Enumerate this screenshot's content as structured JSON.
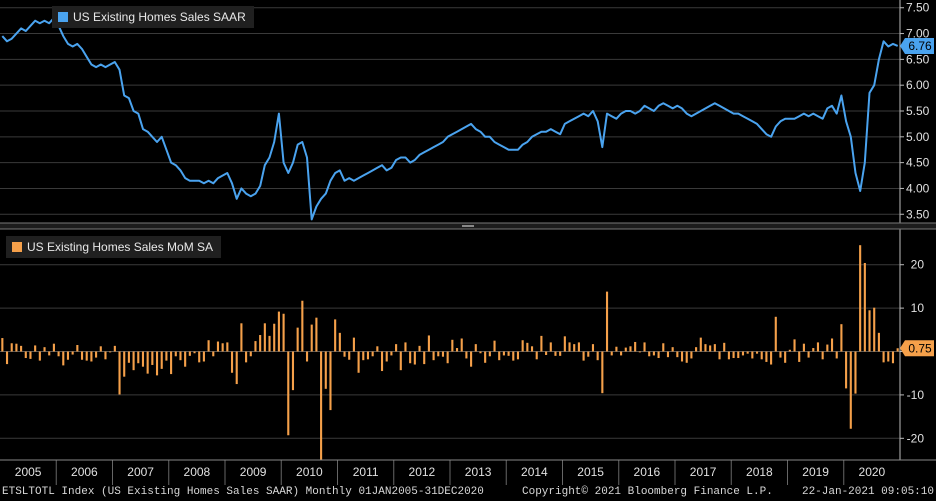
{
  "chart_data": [
    {
      "type": "line",
      "legend": "US Existing Homes Sales SAAR",
      "color": "#4aa3ef",
      "last_value_label": "6.76",
      "ylim": [
        3.35,
        7.65
      ],
      "yticks": [
        "3.50",
        "4.00",
        "4.50",
        "5.00",
        "5.50",
        "6.00",
        "6.50",
        "7.00",
        "7.50"
      ],
      "x_start": "2005-01",
      "x_end": "2020-12",
      "series": [
        {
          "frequency": "monthly",
          "values": [
            6.95,
            6.85,
            6.9,
            7.0,
            7.1,
            7.05,
            7.15,
            7.25,
            7.2,
            7.25,
            7.2,
            7.3,
            7.15,
            6.95,
            6.8,
            6.75,
            6.8,
            6.7,
            6.55,
            6.4,
            6.35,
            6.4,
            6.35,
            6.4,
            6.45,
            6.3,
            5.8,
            5.75,
            5.5,
            5.45,
            5.15,
            5.1,
            5.0,
            4.9,
            5.0,
            4.75,
            4.5,
            4.45,
            4.35,
            4.2,
            4.15,
            4.15,
            4.15,
            4.1,
            4.15,
            4.1,
            4.2,
            4.25,
            4.3,
            4.1,
            3.8,
            4.0,
            3.9,
            3.85,
            3.9,
            4.05,
            4.45,
            4.6,
            4.9,
            5.45,
            4.5,
            4.3,
            4.5,
            4.85,
            4.9,
            4.6,
            3.4,
            3.65,
            3.8,
            3.9,
            4.15,
            4.3,
            4.35,
            4.15,
            4.2,
            4.15,
            4.2,
            4.25,
            4.3,
            4.35,
            4.4,
            4.45,
            4.35,
            4.4,
            4.55,
            4.6,
            4.6,
            4.5,
            4.55,
            4.65,
            4.7,
            4.75,
            4.8,
            4.85,
            4.9,
            5.0,
            5.05,
            5.1,
            5.15,
            5.2,
            5.25,
            5.15,
            5.1,
            5.0,
            5.0,
            4.9,
            4.85,
            4.8,
            4.75,
            4.75,
            4.75,
            4.85,
            4.9,
            5.0,
            5.05,
            5.1,
            5.1,
            5.15,
            5.1,
            5.05,
            5.25,
            5.3,
            5.35,
            5.4,
            5.45,
            5.4,
            5.5,
            5.3,
            4.8,
            5.45,
            5.4,
            5.35,
            5.45,
            5.5,
            5.5,
            5.45,
            5.5,
            5.6,
            5.55,
            5.5,
            5.6,
            5.65,
            5.6,
            5.55,
            5.6,
            5.55,
            5.45,
            5.4,
            5.45,
            5.5,
            5.55,
            5.6,
            5.65,
            5.6,
            5.55,
            5.5,
            5.45,
            5.45,
            5.4,
            5.35,
            5.3,
            5.25,
            5.15,
            5.05,
            5.0,
            5.2,
            5.3,
            5.35,
            5.35,
            5.35,
            5.4,
            5.45,
            5.4,
            5.45,
            5.4,
            5.35,
            5.55,
            5.6,
            5.45,
            5.8,
            5.3,
            5.0,
            4.3,
            3.95,
            4.5,
            5.85,
            6.0,
            6.5,
            6.85,
            6.75,
            6.8,
            6.76
          ]
        }
      ]
    },
    {
      "type": "bar",
      "legend": "US Existing Homes Sales MoM SA",
      "color": "#f5a04a",
      "last_value_label": "0.75",
      "ylim": [
        -25,
        28
      ],
      "yticks": [
        "-20",
        "-10",
        "0",
        "10",
        "20"
      ],
      "x_start": "2005-01",
      "x_end": "2020-12",
      "series": [
        {
          "frequency": "monthly",
          "values": [
            3.1,
            -2.9,
            1.9,
            1.8,
            1.3,
            -1.5,
            -1.7,
            1.4,
            -2.1,
            1.0,
            -0.9,
            1.8,
            -1.1,
            -3.2,
            -1.9,
            -0.7,
            1.5,
            -1.9,
            -2.1,
            -2.3,
            -1.4,
            1.2,
            -1.8,
            -0.2,
            1.3,
            -9.9,
            -5.8,
            -2.6,
            -4.3,
            -2.7,
            -3.5,
            -5.1,
            -3.1,
            -5.5,
            -4.0,
            -2.1,
            -5.2,
            -1.1,
            -2.0,
            -3.5,
            -1.0,
            -0.4,
            -2.5,
            -2.3,
            2.6,
            -1.1,
            2.3,
            1.9,
            2.1,
            -4.9,
            -7.5,
            6.5,
            -2.5,
            -1.1,
            2.4,
            3.8,
            6.5,
            3.6,
            6.4,
            9.2,
            8.7,
            -19.3,
            -8.9,
            5.5,
            11.7,
            -2.3,
            6.2,
            7.8,
            -25.0,
            -8.6,
            -13.5,
            7.4,
            4.3,
            -1.2,
            -1.9,
            3.2,
            -4.9,
            -2.0,
            -1.8,
            -1.1,
            1.2,
            -4.5,
            -2.3,
            -0.9,
            1.7,
            -4.3,
            2.1,
            -2.7,
            -3.0,
            1.3,
            -2.9,
            3.7,
            -2.0,
            -1.1,
            -1.2,
            -2.7,
            2.7,
            0.8,
            3.0,
            -1.6,
            -3.5,
            1.7,
            -0.4,
            -2.6,
            -1.1,
            2.5,
            -2.0,
            -0.9,
            -1.0,
            -2.1,
            -1.8,
            2.6,
            2.0,
            1.2,
            -1.8,
            3.6,
            -0.8,
            2.1,
            -1.0,
            -1.0,
            3.5,
            2.1,
            1.7,
            2.1,
            -2.1,
            -1.2,
            1.7,
            -2.0,
            -9.6,
            13.8,
            -0.9,
            1.1,
            -0.9,
            0.9,
            1.2,
            2.2,
            -0.2,
            2.1,
            -1.1,
            -0.9,
            -1.5,
            1.9,
            -1.3,
            1.0,
            -1.3,
            -2.3,
            -2.6,
            -1.6,
            1.0,
            3.2,
            1.7,
            1.4,
            1.7,
            -1.8,
            2.0,
            -1.8,
            -1.5,
            -1.5,
            -0.9,
            -0.5,
            -1.6,
            -0.5,
            -1.8,
            -2.4,
            -3.0,
            8.0,
            -1.4,
            -2.6,
            0.4,
            2.8,
            -2.4,
            1.8,
            -1.4,
            0.8,
            2.1,
            -1.8,
            1.6,
            3.0,
            -1.6,
            6.3,
            -8.5,
            -17.8,
            -9.7,
            24.5,
            20.4,
            9.5,
            10.1,
            4.3,
            -2.5,
            -2.3,
            -2.7,
            0.75
          ]
        }
      ]
    }
  ],
  "x_axis_years": [
    "2005",
    "2006",
    "2007",
    "2008",
    "2009",
    "2010",
    "2011",
    "2012",
    "2013",
    "2014",
    "2015",
    "2016",
    "2017",
    "2018",
    "2019",
    "2020"
  ],
  "footer": {
    "description": "ETSLTOTL Index (US Existing Homes Sales SAAR)  Monthly 01JAN2005-31DEC2020",
    "copyright": "Copyright© 2021 Bloomberg Finance L.P.",
    "timestamp": "22-Jan-2021 09:05:10"
  }
}
